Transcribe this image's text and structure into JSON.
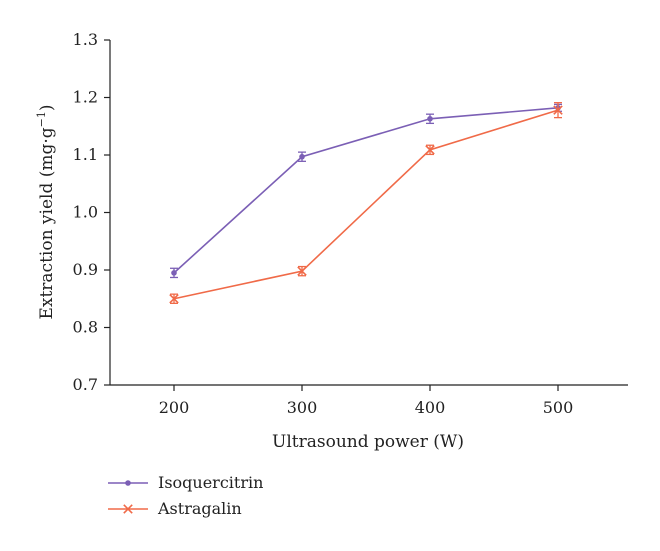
{
  "chart_data": {
    "type": "line",
    "xlabel": "Ultrasound power (W)",
    "ylabel": "Extraction yield (mg·g",
    "ylabel_superscript": "−1",
    "ylabel_close": ")",
    "x": [
      200,
      300,
      400,
      500
    ],
    "x_ticks": [
      "200",
      "300",
      "400",
      "500"
    ],
    "ylim": [
      0.7,
      1.3
    ],
    "y_ticks": [
      "0.7",
      "0.8",
      "0.9",
      "1.0",
      "1.1",
      "1.2",
      "1.3"
    ],
    "grid": false,
    "legend_position": "bottom-left",
    "series": [
      {
        "name": "Isoquercitrin",
        "color": "#7b5fb5",
        "marker": "dot",
        "values": [
          0.895,
          1.097,
          1.163,
          1.182
        ],
        "errors": [
          0.008,
          0.008,
          0.008,
          0.006
        ]
      },
      {
        "name": "Astragalin",
        "color": "#f06a48",
        "marker": "x",
        "values": [
          0.85,
          0.898,
          1.109,
          1.178
        ],
        "errors": [
          0.008,
          0.008,
          0.008,
          0.013
        ]
      }
    ]
  }
}
